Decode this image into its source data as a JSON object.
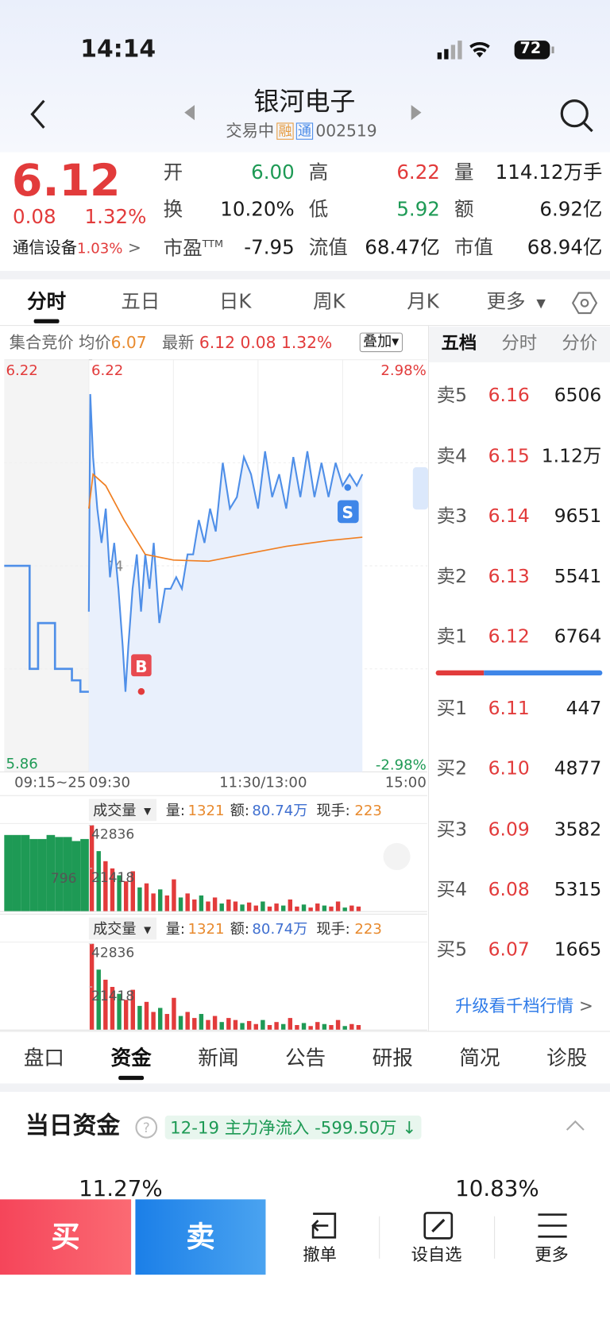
{
  "status_bar": {
    "time": "14:14",
    "battery": "72"
  },
  "header": {
    "title": "银河电子",
    "status": "交易中",
    "tags": [
      "融",
      "通"
    ],
    "code": "002519"
  },
  "quote": {
    "price": "6.12",
    "change": "0.08",
    "change_pct": "1.32%",
    "industry": "通信设备",
    "industry_pct": "1.03%",
    "stats": [
      [
        "开",
        "6.00"
      ],
      [
        "高",
        "6.22"
      ],
      [
        "量",
        "114.12万手"
      ],
      [
        "换",
        "10.20%"
      ],
      [
        "低",
        "5.92"
      ],
      [
        "额",
        "6.92亿"
      ],
      [
        "市盈",
        "-7.95"
      ],
      [
        "流值",
        "68.47亿"
      ],
      [
        "市值",
        "68.94亿"
      ]
    ],
    "pe_suffix": "TTM"
  },
  "chart_tabs": [
    "分时",
    "五日",
    "日K",
    "周K",
    "月K",
    "更多"
  ],
  "chart_info": {
    "auction": "集合竞价",
    "avg_label": "均价",
    "avg": "6.07",
    "latest_label": "最新",
    "latest": "6.12",
    "change": "0.08",
    "change_pct": "1.32%",
    "overlay": "叠加"
  },
  "intraday": {
    "ylim": [
      5.86,
      6.22
    ],
    "yticks": [
      6.22,
      6.04,
      5.86
    ],
    "right_top": "2.98%",
    "right_bottom": "-2.98%",
    "times": [
      "09:15~25",
      "09:30",
      "11:30/13:00",
      "15:00"
    ],
    "minutes": [
      0,
      1,
      3,
      6,
      9,
      12,
      15,
      18,
      21,
      24,
      26,
      28,
      31,
      34,
      37,
      40,
      43,
      46,
      50,
      54,
      58,
      62,
      66,
      70,
      74,
      78,
      82,
      86,
      90,
      95,
      100,
      105,
      110,
      115,
      120,
      125,
      130,
      135,
      140,
      145,
      150,
      155,
      160,
      165,
      170,
      175,
      180,
      185,
      190,
      194
    ],
    "prices": [
      6.0,
      6.19,
      6.135,
      6.09,
      6.06,
      6.09,
      6.03,
      6.06,
      6.02,
      5.97,
      5.93,
      5.97,
      6.02,
      6.05,
      6.0,
      6.05,
      6.02,
      6.06,
      5.99,
      6.02,
      6.02,
      6.03,
      6.02,
      6.05,
      6.05,
      6.08,
      6.06,
      6.09,
      6.07,
      6.13,
      6.09,
      6.1,
      6.135,
      6.12,
      6.09,
      6.14,
      6.1,
      6.12,
      6.09,
      6.135,
      6.1,
      6.14,
      6.1,
      6.13,
      6.1,
      6.13,
      6.11,
      6.12,
      6.11,
      6.12
    ],
    "avg_minutes": [
      0,
      3,
      12,
      25,
      40,
      60,
      85,
      110,
      140,
      170,
      194
    ],
    "avg": [
      6.09,
      6.12,
      6.11,
      6.08,
      6.05,
      6.045,
      6.044,
      6.05,
      6.057,
      6.062,
      6.065
    ],
    "auction": [
      6.04,
      6.04,
      6.04,
      5.95,
      5.99,
      5.99,
      5.95,
      5.95,
      5.94,
      5.93
    ],
    "buy_marker": "B",
    "sell_marker": "S"
  },
  "volume_panels": {
    "menu": "成交量",
    "vol_label": "量:",
    "vol": "1321",
    "amt_label": "额:",
    "amt": "80.74万",
    "hand_label": "现手:",
    "hand": "223",
    "auction_label": "796",
    "ylim": [
      0,
      42836
    ],
    "ticks": [
      42836,
      21418
    ],
    "values": [
      42836,
      30000,
      25000,
      21418,
      18000,
      15000,
      20000,
      12000,
      14000,
      9000,
      11000,
      8000,
      16000,
      7000,
      9000,
      6000,
      8000,
      5000,
      7000,
      4000,
      6000,
      5000,
      3500,
      4500,
      3000,
      5000,
      2500,
      4000,
      3000,
      6000,
      2500,
      3500,
      2000,
      4000,
      3000,
      2500,
      5000,
      2000,
      3000,
      2500
    ],
    "auction_values": [
      38000,
      38000,
      38000,
      36000,
      36000,
      38000,
      37000,
      37000,
      35000,
      36000
    ]
  },
  "order_book": {
    "tabs": [
      "五档",
      "分时",
      "分价"
    ],
    "asks": [
      {
        "label": "卖5",
        "price": "6.16",
        "volume": "6506"
      },
      {
        "label": "卖4",
        "price": "6.15",
        "volume": "1.12万"
      },
      {
        "label": "卖3",
        "price": "6.14",
        "volume": "9651"
      },
      {
        "label": "卖2",
        "price": "6.13",
        "volume": "5541"
      },
      {
        "label": "卖1",
        "price": "6.12",
        "volume": "6764"
      }
    ],
    "bids": [
      {
        "label": "买1",
        "price": "6.11",
        "volume": "447"
      },
      {
        "label": "买2",
        "price": "6.10",
        "volume": "4877"
      },
      {
        "label": "买3",
        "price": "6.09",
        "volume": "3582"
      },
      {
        "label": "买4",
        "price": "6.08",
        "volume": "5315"
      },
      {
        "label": "买5",
        "price": "6.07",
        "volume": "1665"
      }
    ],
    "upgrade": "升级看千档行情"
  },
  "detail_tabs": [
    "盘口",
    "资金",
    "新闻",
    "公告",
    "研报",
    "简况",
    "诊股"
  ],
  "funds": {
    "title": "当日资金",
    "date": "12-19",
    "flow": "主力净流入 -599.50万",
    "left_pct": "11.27%",
    "right_pct": "10.83%"
  },
  "bottom_bar": {
    "buy": "买",
    "sell": "卖",
    "cancel": "撤单",
    "watch": "设自选",
    "more": "更多"
  }
}
